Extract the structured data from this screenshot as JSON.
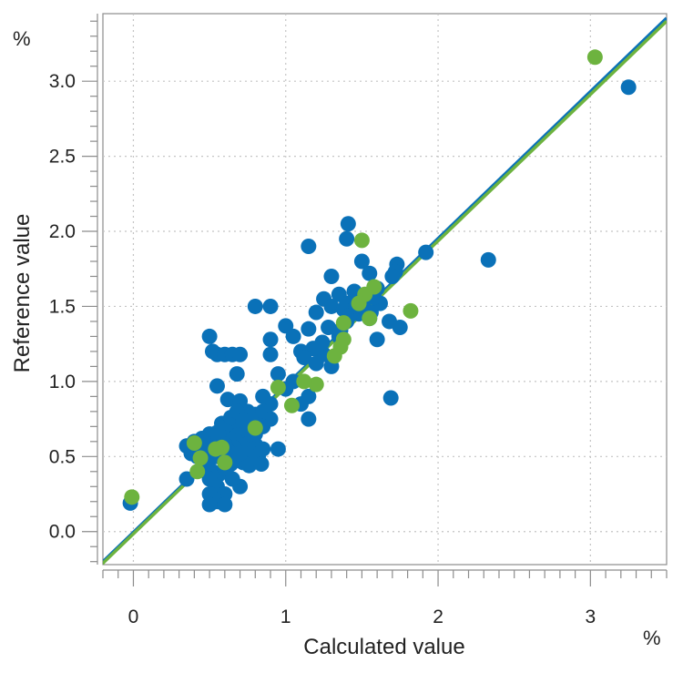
{
  "chart_data": {
    "type": "scatter",
    "xlabel": "Calculated value",
    "ylabel": "Reference value",
    "x_unit": "%",
    "y_unit": "%",
    "xlim": [
      -0.2,
      3.5
    ],
    "ylim": [
      -0.22,
      3.45
    ],
    "x_ticks": [
      0,
      1,
      2,
      3
    ],
    "x_tick_labels": [
      "0",
      "1",
      "2",
      "3"
    ],
    "y_ticks": [
      0.0,
      0.5,
      1.0,
      1.5,
      2.0,
      2.5,
      3.0
    ],
    "y_tick_labels": [
      "0.0",
      "0.5",
      "1.0",
      "1.5",
      "2.0",
      "2.5",
      "3.0"
    ],
    "grid": true,
    "series": [
      {
        "color": "#0a71b8",
        "points": [
          [
            -0.02,
            0.19
          ],
          [
            3.25,
            2.96
          ],
          [
            2.33,
            1.81
          ],
          [
            1.92,
            1.86
          ],
          [
            1.69,
            0.89
          ],
          [
            1.41,
            2.05
          ],
          [
            1.4,
            1.95
          ],
          [
            1.15,
            1.9
          ],
          [
            1.5,
            1.8
          ],
          [
            1.73,
            1.78
          ],
          [
            1.72,
            1.73
          ],
          [
            1.7,
            1.7
          ],
          [
            1.55,
            1.72
          ],
          [
            1.3,
            1.7
          ],
          [
            0.8,
            1.5
          ],
          [
            0.9,
            1.5
          ],
          [
            1.6,
            1.62
          ],
          [
            1.45,
            1.6
          ],
          [
            1.35,
            1.58
          ],
          [
            1.25,
            1.55
          ],
          [
            1.5,
            1.55
          ],
          [
            1.62,
            1.52
          ],
          [
            1.4,
            1.52
          ],
          [
            1.3,
            1.5
          ],
          [
            1.2,
            1.46
          ],
          [
            1.48,
            1.45
          ],
          [
            1.55,
            1.42
          ],
          [
            1.68,
            1.4
          ],
          [
            1.75,
            1.36
          ],
          [
            1.4,
            1.4
          ],
          [
            1.28,
            1.36
          ],
          [
            1.15,
            1.35
          ],
          [
            1.6,
            1.28
          ],
          [
            1.0,
            1.37
          ],
          [
            0.9,
            1.28
          ],
          [
            1.05,
            1.3
          ],
          [
            1.35,
            1.3
          ],
          [
            1.1,
            1.2
          ],
          [
            1.25,
            1.18
          ],
          [
            1.2,
            1.12
          ],
          [
            1.3,
            1.1
          ],
          [
            0.9,
            1.18
          ],
          [
            0.95,
            1.05
          ],
          [
            1.05,
            1.0
          ],
          [
            1.15,
            0.9
          ],
          [
            1.0,
            0.95
          ],
          [
            1.1,
            0.85
          ],
          [
            1.15,
            0.75
          ],
          [
            0.9,
            0.85
          ],
          [
            0.85,
            0.9
          ],
          [
            0.5,
            1.3
          ],
          [
            0.52,
            1.2
          ],
          [
            0.55,
            1.18
          ],
          [
            0.6,
            1.18
          ],
          [
            0.65,
            1.18
          ],
          [
            0.7,
            1.18
          ],
          [
            0.68,
            1.05
          ],
          [
            0.55,
            0.97
          ],
          [
            0.62,
            0.88
          ],
          [
            0.7,
            0.87
          ],
          [
            0.75,
            0.8
          ],
          [
            0.8,
            0.78
          ],
          [
            0.85,
            0.8
          ],
          [
            0.9,
            0.75
          ],
          [
            0.78,
            0.7
          ],
          [
            0.7,
            0.72
          ],
          [
            0.65,
            0.7
          ],
          [
            0.6,
            0.68
          ],
          [
            0.55,
            0.66
          ],
          [
            0.5,
            0.65
          ],
          [
            0.45,
            0.62
          ],
          [
            0.48,
            0.58
          ],
          [
            0.52,
            0.57
          ],
          [
            0.58,
            0.6
          ],
          [
            0.62,
            0.62
          ],
          [
            0.68,
            0.64
          ],
          [
            0.72,
            0.66
          ],
          [
            0.76,
            0.62
          ],
          [
            0.8,
            0.58
          ],
          [
            0.85,
            0.55
          ],
          [
            0.82,
            0.5
          ],
          [
            0.78,
            0.52
          ],
          [
            0.74,
            0.55
          ],
          [
            0.7,
            0.58
          ],
          [
            0.66,
            0.56
          ],
          [
            0.62,
            0.54
          ],
          [
            0.58,
            0.52
          ],
          [
            0.54,
            0.5
          ],
          [
            0.5,
            0.48
          ],
          [
            0.46,
            0.46
          ],
          [
            0.42,
            0.5
          ],
          [
            0.38,
            0.52
          ],
          [
            0.35,
            0.57
          ],
          [
            0.4,
            0.6
          ],
          [
            0.44,
            0.55
          ],
          [
            0.48,
            0.42
          ],
          [
            0.52,
            0.4
          ],
          [
            0.56,
            0.38
          ],
          [
            0.6,
            0.42
          ],
          [
            0.64,
            0.45
          ],
          [
            0.68,
            0.48
          ],
          [
            0.72,
            0.46
          ],
          [
            0.76,
            0.44
          ],
          [
            0.84,
            0.45
          ],
          [
            0.5,
            0.35
          ],
          [
            0.55,
            0.3
          ],
          [
            0.6,
            0.25
          ],
          [
            0.5,
            0.25
          ],
          [
            0.55,
            0.2
          ],
          [
            0.6,
            0.18
          ],
          [
            0.5,
            0.18
          ],
          [
            0.7,
            0.3
          ],
          [
            0.35,
            0.35
          ],
          [
            0.65,
            0.35
          ],
          [
            0.95,
            0.55
          ],
          [
            0.75,
            0.68
          ],
          [
            0.8,
            0.65
          ],
          [
            0.85,
            0.7
          ],
          [
            0.58,
            0.72
          ],
          [
            0.64,
            0.76
          ],
          [
            0.68,
            0.8
          ],
          [
            0.72,
            0.74
          ],
          [
            0.56,
            0.64
          ],
          [
            0.6,
            0.58
          ],
          [
            0.54,
            0.56
          ],
          [
            0.47,
            0.52
          ],
          [
            0.66,
            0.5
          ],
          [
            0.7,
            0.52
          ],
          [
            1.38,
            1.48
          ],
          [
            1.42,
            1.44
          ],
          [
            1.46,
            1.5
          ],
          [
            1.52,
            1.48
          ],
          [
            1.56,
            1.46
          ],
          [
            1.58,
            1.56
          ],
          [
            1.36,
            1.34
          ],
          [
            1.24,
            1.26
          ],
          [
            1.18,
            1.22
          ],
          [
            1.12,
            1.16
          ]
        ]
      },
      {
        "color": "#6db33f",
        "points": [
          [
            -0.01,
            0.23
          ],
          [
            3.03,
            3.16
          ],
          [
            1.5,
            1.94
          ],
          [
            1.82,
            1.47
          ],
          [
            1.58,
            1.63
          ],
          [
            1.52,
            1.58
          ],
          [
            1.48,
            1.52
          ],
          [
            1.38,
            1.39
          ],
          [
            1.55,
            1.42
          ],
          [
            1.38,
            1.28
          ],
          [
            1.36,
            1.23
          ],
          [
            1.32,
            1.17
          ],
          [
            1.2,
            0.98
          ],
          [
            1.12,
            1.0
          ],
          [
            1.04,
            0.84
          ],
          [
            0.95,
            0.96
          ],
          [
            0.8,
            0.69
          ],
          [
            0.58,
            0.56
          ],
          [
            0.54,
            0.55
          ],
          [
            0.6,
            0.46
          ],
          [
            0.44,
            0.49
          ],
          [
            0.42,
            0.4
          ],
          [
            0.4,
            0.59
          ]
        ]
      }
    ],
    "fit_lines": [
      {
        "color": "#0a71b8",
        "x": [
          -0.22,
          3.5
        ],
        "y": [
          -0.22,
          3.42
        ]
      },
      {
        "color": "#6db33f",
        "x": [
          -0.22,
          3.5
        ],
        "y": [
          -0.23,
          3.4
        ]
      }
    ]
  }
}
